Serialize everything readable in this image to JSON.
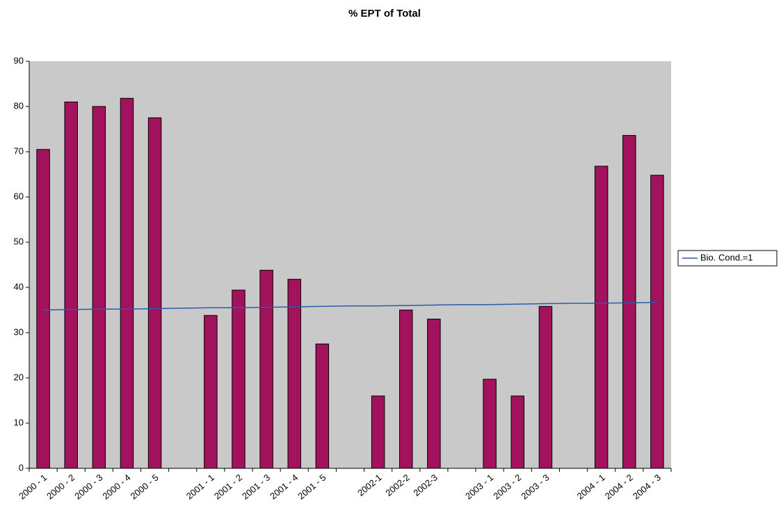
{
  "chart_data": {
    "type": "bar",
    "title": "% EPT of Total",
    "categories": [
      "2000 - 1",
      "2000 - 2",
      "2000 - 3",
      "2000 - 4",
      "2000 - 5",
      null,
      "2001 - 1",
      "2001 - 2",
      "2001 - 3",
      "2001 - 4",
      "2001 - 5",
      null,
      "2002-1",
      "2002-2",
      "2002-3",
      null,
      "2003 - 1",
      "2003 - 2",
      "2003 - 3",
      null,
      "2004 - 1",
      "2004 - 2",
      "2004 - 3"
    ],
    "series": [
      {
        "type": "bar",
        "color": "#a3125c",
        "values": [
          70.5,
          81,
          80,
          81.8,
          77.5,
          null,
          33.8,
          39.4,
          43.8,
          41.8,
          27.5,
          null,
          16,
          35,
          33,
          null,
          19.7,
          16,
          35.8,
          null,
          66.8,
          73.6,
          64.8
        ]
      },
      {
        "type": "line",
        "name": "Bio. Cond.=1",
        "color": "#2a5ca8",
        "values": [
          35.0,
          35.1,
          35.2,
          35.2,
          35.3,
          35.4,
          35.5,
          35.5,
          35.6,
          35.7,
          35.8,
          35.9,
          35.9,
          36.0,
          36.1,
          36.2,
          36.2,
          36.3,
          36.4,
          36.5,
          36.5,
          36.6,
          36.7
        ]
      }
    ],
    "ylim": [
      0,
      90
    ],
    "yticks": [
      0,
      10,
      20,
      30,
      40,
      50,
      60,
      70,
      80,
      90
    ],
    "grid": false,
    "legend": "right"
  }
}
